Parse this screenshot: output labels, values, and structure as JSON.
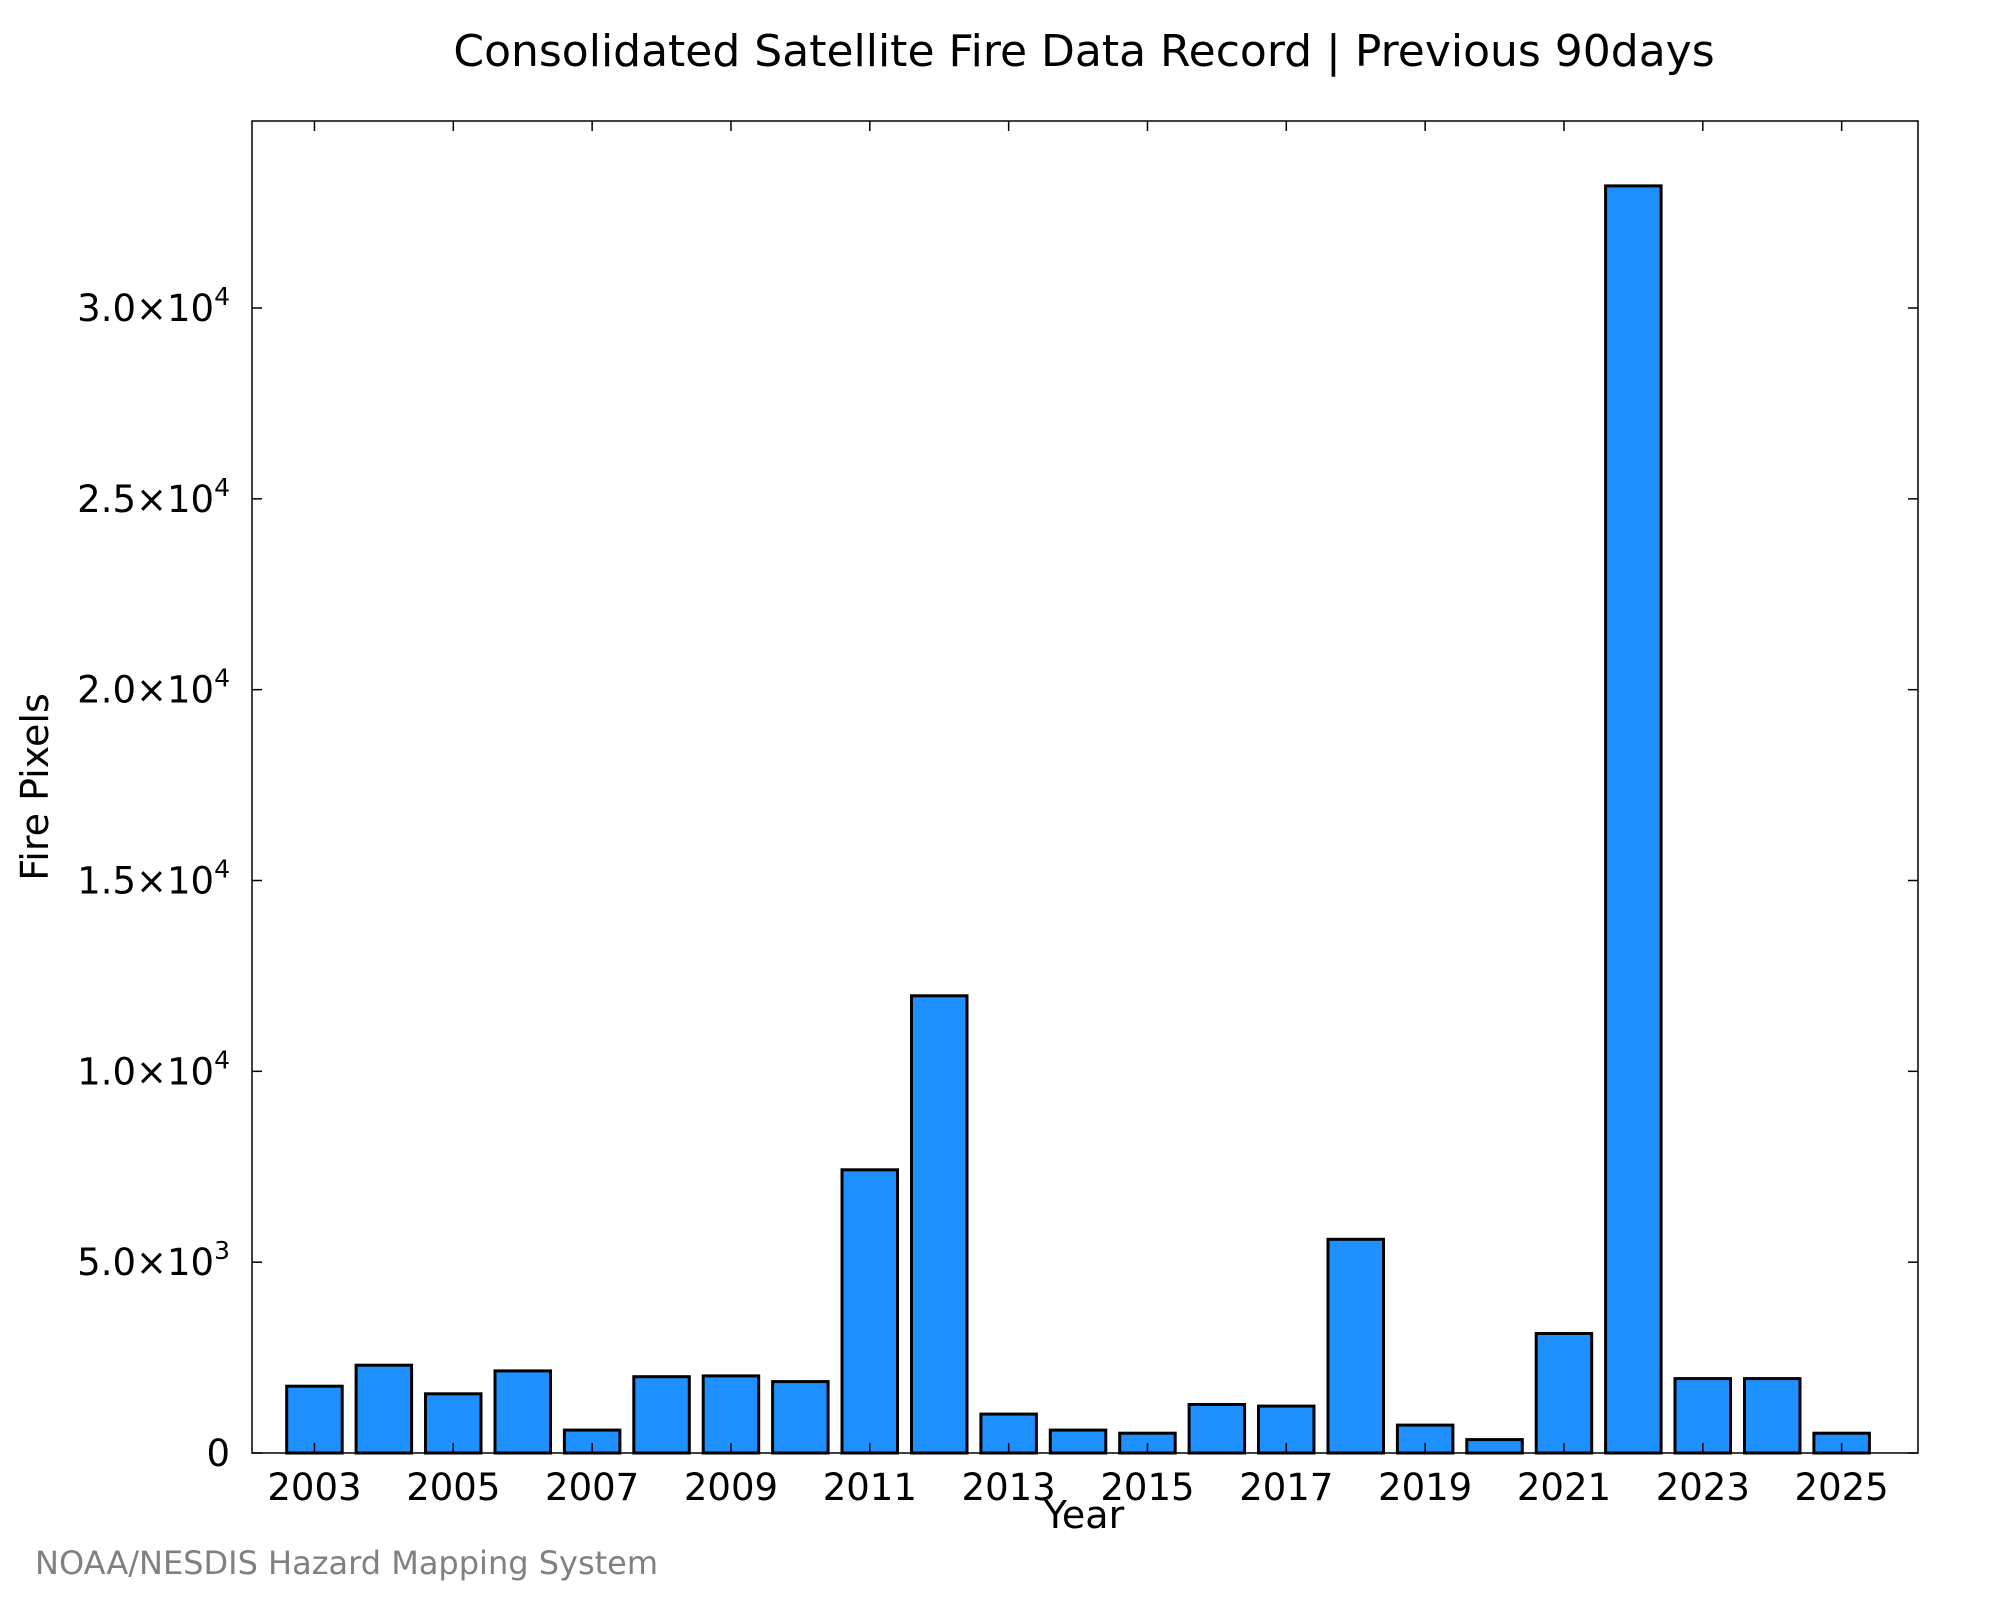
{
  "chart_data": {
    "type": "bar",
    "title": "Consolidated Satellite Fire Data Record | Previous 90days",
    "xlabel": "Year",
    "ylabel": "Fire Pixels",
    "categories": [
      "2003",
      "2004",
      "2005",
      "2006",
      "2007",
      "2008",
      "2009",
      "2010",
      "2011",
      "2012",
      "2013",
      "2014",
      "2015",
      "2016",
      "2017",
      "2018",
      "2019",
      "2020",
      "2021",
      "2022",
      "2023",
      "2024",
      "2025"
    ],
    "values": [
      1750,
      2300,
      1550,
      2150,
      600,
      2000,
      2020,
      1870,
      7420,
      11980,
      1020,
      600,
      520,
      1270,
      1230,
      5600,
      730,
      350,
      3130,
      33200,
      1950,
      1950,
      520
    ],
    "xtick_labels": [
      "2003",
      "2005",
      "2007",
      "2009",
      "2011",
      "2013",
      "2015",
      "2017",
      "2019",
      "2021",
      "2023",
      "2025"
    ],
    "ytick_labels": [
      {
        "value": 0,
        "mantissa": "0",
        "exponent": ""
      },
      {
        "value": 5000,
        "mantissa": "5.0×10",
        "exponent": "3"
      },
      {
        "value": 10000,
        "mantissa": "1.0×10",
        "exponent": "4"
      },
      {
        "value": 15000,
        "mantissa": "1.5×10",
        "exponent": "4"
      },
      {
        "value": 20000,
        "mantissa": "2.0×10",
        "exponent": "4"
      },
      {
        "value": 25000,
        "mantissa": "2.5×10",
        "exponent": "4"
      },
      {
        "value": 30000,
        "mantissa": "3.0×10",
        "exponent": "4"
      }
    ],
    "xlim": [
      2002.1,
      2026.1
    ],
    "ylim": [
      0,
      34900
    ],
    "bar_color": "#1e90ff",
    "edge_color": "#000000",
    "grid": false,
    "legend": "none"
  },
  "credit": "NOAA/NESDIS Hazard Mapping System"
}
